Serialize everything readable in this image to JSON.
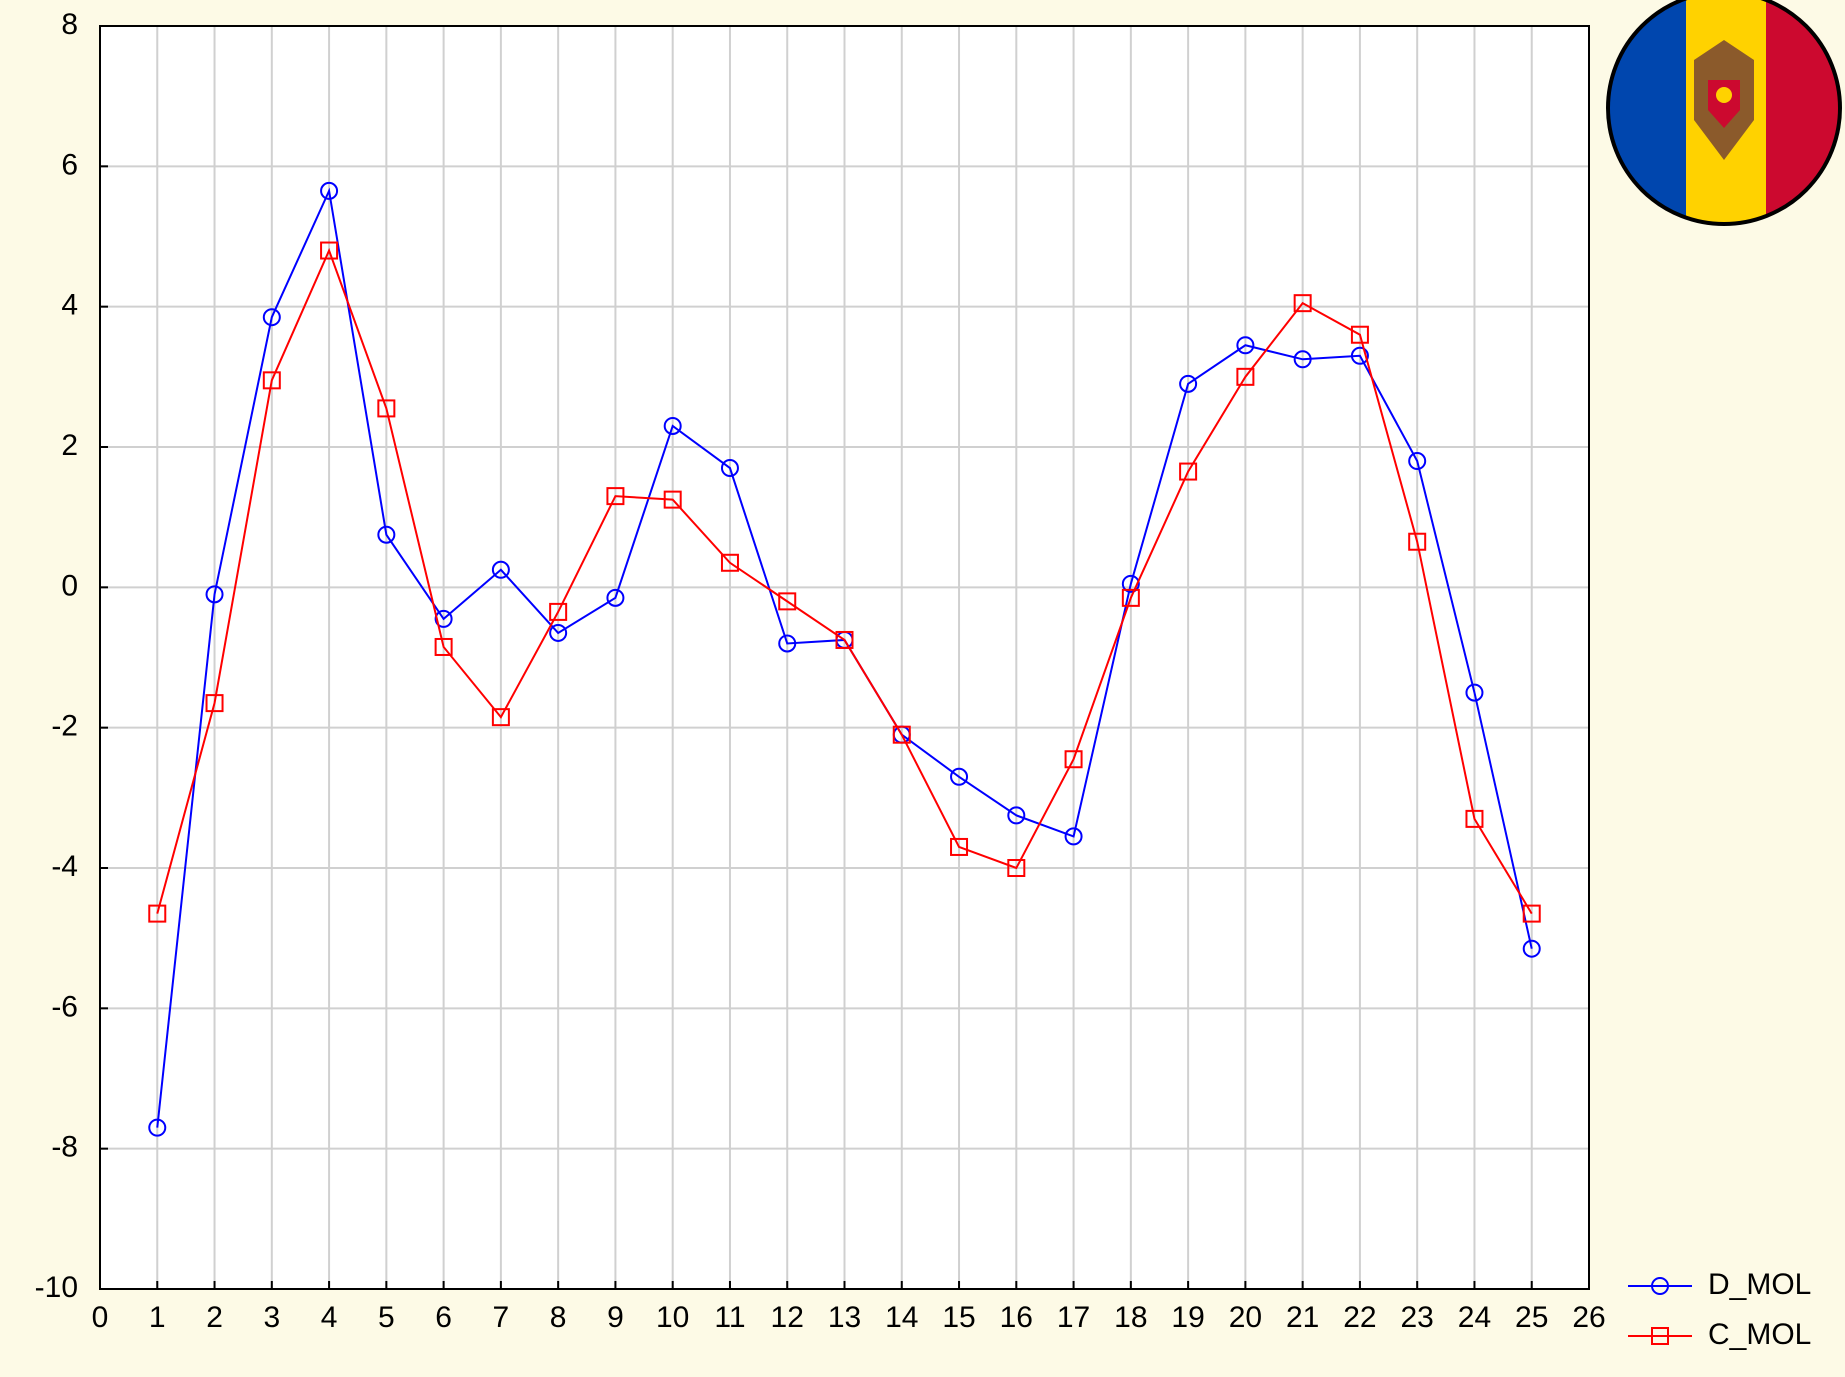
{
  "chart_data": {
    "type": "line",
    "x": [
      1,
      2,
      3,
      4,
      5,
      6,
      7,
      8,
      9,
      10,
      11,
      12,
      13,
      14,
      15,
      16,
      17,
      18,
      19,
      20,
      21,
      22,
      23,
      24,
      25
    ],
    "series": [
      {
        "name": "D_MOL",
        "color": "#0000ff",
        "marker": "circle",
        "values": [
          -7.7,
          -0.1,
          3.85,
          5.65,
          0.75,
          -0.45,
          0.25,
          -0.65,
          -0.15,
          2.3,
          1.7,
          -0.8,
          -0.75,
          -2.1,
          -2.7,
          -3.25,
          -3.55,
          0.05,
          2.9,
          3.45,
          3.25,
          3.3,
          1.8,
          -1.5,
          -5.15
        ]
      },
      {
        "name": "C_MOL",
        "color": "#ff0000",
        "marker": "square",
        "values": [
          -4.65,
          -1.65,
          2.95,
          4.8,
          2.55,
          -0.85,
          -1.85,
          -0.35,
          1.3,
          1.25,
          0.35,
          -0.2,
          -0.75,
          -2.1,
          -3.7,
          -4.0,
          -2.45,
          -0.15,
          1.65,
          3.0,
          4.05,
          3.6,
          0.65,
          -3.3,
          -4.65
        ]
      }
    ],
    "xlim": [
      0,
      26
    ],
    "xticks": [
      0,
      1,
      2,
      3,
      4,
      5,
      6,
      7,
      8,
      9,
      10,
      11,
      12,
      13,
      14,
      15,
      16,
      17,
      18,
      19,
      20,
      21,
      22,
      23,
      24,
      25,
      26
    ],
    "ylim": [
      -10,
      8
    ],
    "yticks": [
      -10,
      -8,
      -6,
      -4,
      -2,
      0,
      2,
      4,
      6,
      8
    ],
    "grid": true,
    "legend": "bottom-right"
  }
}
